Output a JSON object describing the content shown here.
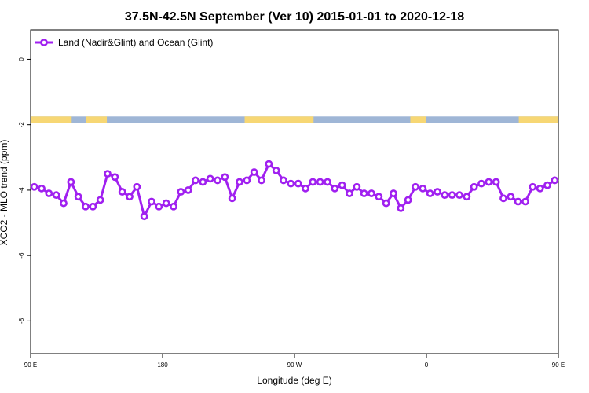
{
  "colors": {
    "series": "#a020f0",
    "ocean": "#9fb6d6",
    "land": "#f7d774",
    "frame": "#000000",
    "background": "#ffffff"
  },
  "chart_data": {
    "type": "line",
    "title": "37.5N-42.5N September (Ver 10)   2015-01-01 to 2020-12-18",
    "xlabel": "Longitude (deg E)",
    "ylabel": "XCO2 - MLO trend (ppm)",
    "xlim": [
      90,
      450
    ],
    "ylim": [
      -9,
      0.9
    ],
    "x_ticks": [
      {
        "value": 90,
        "label": "90 E"
      },
      {
        "value": 180,
        "label": "180"
      },
      {
        "value": 270,
        "label": "90 W"
      },
      {
        "value": 360,
        "label": "0"
      },
      {
        "value": 450,
        "label": "90 E"
      },
      {
        "value": 540,
        "label": "180"
      }
    ],
    "y_ticks": [
      {
        "value": 0,
        "label": "0"
      },
      {
        "value": -2,
        "label": "-2"
      },
      {
        "value": -4,
        "label": "-4"
      },
      {
        "value": -6,
        "label": "-6"
      },
      {
        "value": -8,
        "label": "-8"
      }
    ],
    "legend": {
      "position": "top-left",
      "entries": [
        "Land (Nadir&Glint) and Ocean (Glint)"
      ]
    },
    "land_band": {
      "y_range": [
        -1.95,
        -1.75
      ],
      "land_segments": [
        [
          90,
          118
        ],
        [
          128,
          142
        ],
        [
          236,
          283
        ],
        [
          349,
          360
        ],
        [
          423,
          450
        ],
        [
          450,
          478
        ],
        [
          488,
          502
        ]
      ]
    },
    "series": [
      {
        "name": "Land (Nadir&Glint) and Ocean (Glint)",
        "x": [
          92.5,
          97.5,
          102.5,
          107.5,
          112.5,
          117.5,
          122.5,
          127.5,
          132.5,
          137.5,
          142.5,
          147.5,
          152.5,
          157.5,
          162.5,
          167.5,
          172.5,
          177.5,
          182.5,
          187.5,
          192.5,
          197.5,
          202.5,
          207.5,
          212.5,
          217.5,
          222.5,
          227.5,
          232.5,
          237.5,
          242.5,
          247.5,
          252.5,
          257.5,
          262.5,
          267.5,
          272.5,
          277.5,
          282.5,
          287.5,
          292.5,
          297.5,
          302.5,
          307.5,
          312.5,
          317.5,
          322.5,
          327.5,
          332.5,
          337.5,
          342.5,
          347.5,
          352.5,
          357.5,
          362.5,
          367.5,
          372.5,
          377.5,
          382.5,
          387.5,
          392.5,
          397.5,
          402.5,
          407.5,
          412.5,
          417.5,
          422.5,
          427.5,
          432.5,
          437.5,
          442.5,
          447.5
        ],
        "values": [
          -3.9,
          -3.95,
          -4.1,
          -4.15,
          -4.4,
          -3.75,
          -4.2,
          -4.5,
          -4.5,
          -4.3,
          -3.5,
          -3.6,
          -4.05,
          -4.2,
          -3.9,
          -4.8,
          -4.35,
          -4.5,
          -4.4,
          -4.5,
          -4.05,
          -4.0,
          -3.7,
          -3.75,
          -3.65,
          -3.7,
          -3.6,
          -4.25,
          -3.75,
          -3.7,
          -3.45,
          -3.7,
          -3.2,
          -3.4,
          -3.7,
          -3.8,
          -3.8,
          -3.95,
          -3.75,
          -3.75,
          -3.75,
          -3.95,
          -3.85,
          -4.1,
          -3.9,
          -4.1,
          -4.1,
          -4.2,
          -4.4,
          -4.1,
          -4.55,
          -4.3,
          -3.9,
          -3.95,
          -4.1,
          -4.05,
          -4.15,
          -4.15,
          -4.15,
          -4.2,
          -3.9,
          -3.8,
          -3.75,
          -3.75,
          -4.25,
          -4.2,
          -4.35,
          -4.35,
          -3.9,
          -3.95,
          -3.85,
          -3.7
        ]
      }
    ]
  }
}
